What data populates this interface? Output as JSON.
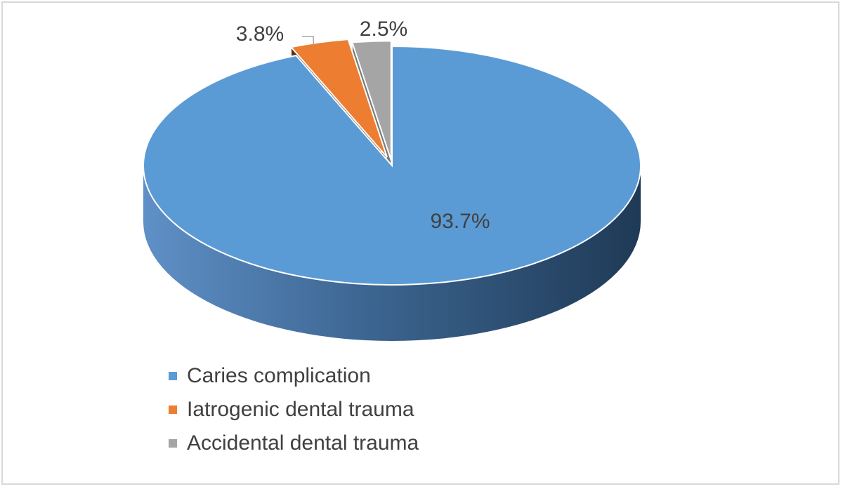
{
  "chart_data": {
    "type": "pie",
    "title": "",
    "categories": [
      "Caries complication",
      "Iatrogenic dental trauma",
      "Accidental dental trauma"
    ],
    "values": [
      93.7,
      3.8,
      2.5
    ],
    "data_labels": [
      "93.7%",
      "3.8%",
      "2.5%"
    ],
    "colors": [
      "#5b9bd5",
      "#ed7d31",
      "#a5a5a5"
    ],
    "legend_position": "bottom-left",
    "style": "3d-exploded"
  }
}
